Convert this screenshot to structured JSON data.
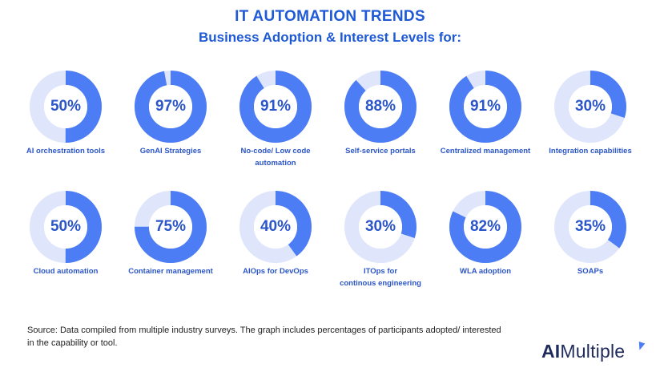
{
  "header": {
    "title": "IT AUTOMATION TRENDS",
    "subtitle": "Business Adoption & Interest Levels for:"
  },
  "colors": {
    "accent": "#4c7df5",
    "track": "#dfe6fb",
    "heading": "#1f5ad6",
    "label": "#2b55c8",
    "inner": "#ffffff",
    "pct_text": "#2b55c8"
  },
  "chart_data": {
    "type": "donut",
    "title": "IT AUTOMATION TRENDS",
    "subtitle": "Business Adoption & Interest Levels for:",
    "unit": "%",
    "max": 100,
    "items": [
      {
        "label": "AI orchestration tools",
        "value": 50,
        "value_label": "50%"
      },
      {
        "label": "GenAI Strategies",
        "value": 97,
        "value_label": "97%"
      },
      {
        "label": "No-code/ Low code\nautomation",
        "value": 91,
        "value_label": "91%"
      },
      {
        "label": "Self-service portals",
        "value": 88,
        "value_label": "88%"
      },
      {
        "label": "Centralized management",
        "value": 91,
        "value_label": "91%"
      },
      {
        "label": "Integration capabilities",
        "value": 30,
        "value_label": "30%"
      },
      {
        "label": "Cloud automation",
        "value": 50,
        "value_label": "50%"
      },
      {
        "label": "Container management",
        "value": 75,
        "value_label": "75%"
      },
      {
        "label": "AIOps for DevOps",
        "value": 40,
        "value_label": "40%"
      },
      {
        "label": "ITOps for\ncontinous engineering",
        "value": 30,
        "value_label": "30%"
      },
      {
        "label": "WLA adoption",
        "value": 82,
        "value_label": "82%"
      },
      {
        "label": "SOAPs",
        "value": 35,
        "value_label": "35%"
      }
    ]
  },
  "footer": {
    "source": "Source: Data compiled from multiple industry surveys. The graph includes percentages of participants adopted/ interested in the capability or tool.",
    "brand_ai": "AI",
    "brand_rest": "Multiple"
  }
}
